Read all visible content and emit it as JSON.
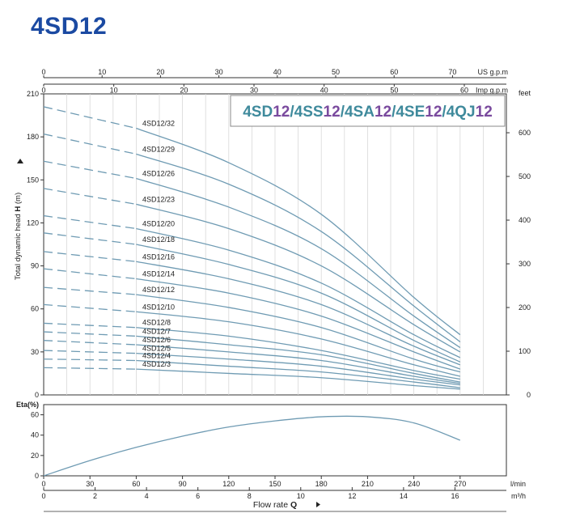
{
  "page": {
    "title": "4SD12"
  },
  "colors": {
    "title": "#1b4aa2",
    "curve": "#6f9bb3",
    "axis": "#333333",
    "box_teal": "#3f8a9c",
    "box_purple": "#7a4a9e"
  },
  "chart_data": [
    {
      "type": "line",
      "name": "head-curves",
      "ylabel": "Total dynamic head H (m)",
      "ylim": [
        0,
        210
      ],
      "yticks": [
        0,
        30,
        60,
        90,
        120,
        150,
        180,
        210
      ],
      "xlim_lmin": [
        0,
        300
      ],
      "feet_label": "feet",
      "feet_ticks": [
        0,
        100,
        200,
        300,
        400,
        500,
        600
      ],
      "us_label": "US g.p.m",
      "us_ticks": [
        0,
        10,
        20,
        30,
        40,
        50,
        60,
        70
      ],
      "imp_label": "Imp g.p.m",
      "imp_ticks": [
        0,
        10,
        20,
        30,
        40,
        50,
        60
      ],
      "legend_box": {
        "parts": [
          {
            "text": "4SD",
            "color": "#3f8a9c"
          },
          {
            "text": "12",
            "color": "#7a4a9e"
          },
          {
            "text": "/4SS",
            "color": "#3f8a9c"
          },
          {
            "text": "12",
            "color": "#7a4a9e"
          },
          {
            "text": "/4SA",
            "color": "#3f8a9c"
          },
          {
            "text": "12",
            "color": "#7a4a9e"
          },
          {
            "text": "/4SE",
            "color": "#3f8a9c"
          },
          {
            "text": "12",
            "color": "#7a4a9e"
          },
          {
            "text": "/4QJ",
            "color": "#3f8a9c"
          },
          {
            "text": "12",
            "color": "#7a4a9e"
          }
        ]
      },
      "dashed_until_x": 60,
      "series": [
        {
          "name": "4SD12/32",
          "label_y": 186,
          "x": [
            0,
            60,
            120,
            180,
            240,
            270
          ],
          "values": [
            201,
            186,
            162,
            126,
            68,
            42
          ]
        },
        {
          "name": "4SD12/29",
          "label_y": 168,
          "x": [
            0,
            60,
            120,
            180,
            240,
            270
          ],
          "values": [
            182,
            168,
            147,
            114,
            62,
            37
          ]
        },
        {
          "name": "4SD12/26",
          "label_y": 151,
          "x": [
            0,
            60,
            120,
            180,
            240,
            270
          ],
          "values": [
            163,
            151,
            131,
            102,
            55,
            33
          ]
        },
        {
          "name": "4SD12/23",
          "label_y": 133,
          "x": [
            0,
            60,
            120,
            180,
            240,
            270
          ],
          "values": [
            144,
            133,
            116,
            90,
            49,
            30
          ]
        },
        {
          "name": "4SD12/20",
          "label_y": 116,
          "x": [
            0,
            60,
            120,
            180,
            240,
            270
          ],
          "values": [
            125,
            116,
            101,
            78,
            42,
            26
          ]
        },
        {
          "name": "4SD12/18",
          "label_y": 105,
          "x": [
            0,
            60,
            120,
            180,
            240,
            270
          ],
          "values": [
            113,
            105,
            91,
            71,
            38,
            23
          ]
        },
        {
          "name": "4SD12/16",
          "label_y": 93,
          "x": [
            0,
            60,
            120,
            180,
            240,
            270
          ],
          "values": [
            100,
            93,
            81,
            63,
            34,
            21
          ]
        },
        {
          "name": "4SD12/14",
          "label_y": 81,
          "x": [
            0,
            60,
            120,
            180,
            240,
            270
          ],
          "values": [
            88,
            81,
            71,
            55,
            30,
            18
          ]
        },
        {
          "name": "4SD12/12",
          "label_y": 70,
          "x": [
            0,
            60,
            120,
            180,
            240,
            270
          ],
          "values": [
            75,
            70,
            61,
            47,
            25,
            16
          ]
        },
        {
          "name": "4SD12/10",
          "label_y": 58,
          "x": [
            0,
            60,
            120,
            180,
            240,
            270
          ],
          "values": [
            63,
            58,
            51,
            39,
            21,
            13
          ]
        },
        {
          "name": "4SD12/8",
          "label_y": 47,
          "x": [
            0,
            60,
            120,
            180,
            240,
            270
          ],
          "values": [
            50,
            47,
            41,
            31,
            17,
            11
          ]
        },
        {
          "name": "4SD12/7",
          "label_y": 41,
          "x": [
            0,
            60,
            120,
            180,
            240,
            270
          ],
          "values": [
            44,
            41,
            35,
            28,
            15,
            9
          ]
        },
        {
          "name": "4SD12/6",
          "label_y": 35,
          "x": [
            0,
            60,
            120,
            180,
            240,
            270
          ],
          "values": [
            38,
            35,
            30,
            24,
            13,
            8
          ]
        },
        {
          "name": "4SD12/5",
          "label_y": 29,
          "x": [
            0,
            60,
            120,
            180,
            240,
            270
          ],
          "values": [
            31,
            29,
            25,
            20,
            11,
            7
          ]
        },
        {
          "name": "4SD12/4",
          "label_y": 24,
          "x": [
            0,
            60,
            120,
            180,
            240,
            270
          ],
          "values": [
            25,
            24,
            20,
            16,
            9,
            5
          ]
        },
        {
          "name": "4SD12/3",
          "label_y": 18,
          "x": [
            0,
            60,
            120,
            180,
            240,
            270
          ],
          "values": [
            19,
            18,
            15,
            12,
            6.5,
            4
          ]
        }
      ]
    },
    {
      "type": "line",
      "name": "efficiency-curve",
      "ylabel": "Eta(%)",
      "ylim": [
        0,
        70
      ],
      "yticks": [
        0,
        20,
        40,
        60
      ],
      "xlabel": "Flow rate",
      "xlabel_bold": "Q",
      "lmin_label": "l/min",
      "lmin_ticks": [
        0,
        30,
        60,
        90,
        120,
        150,
        180,
        210,
        240,
        270
      ],
      "m3h_label": "m³/h",
      "m3h_ticks": [
        0,
        2,
        4,
        6,
        8,
        10,
        12,
        14,
        16
      ],
      "x": [
        0,
        30,
        60,
        90,
        120,
        150,
        180,
        210,
        240,
        270
      ],
      "values": [
        0,
        15,
        28,
        39,
        48,
        54,
        58,
        58,
        52,
        35
      ]
    }
  ]
}
